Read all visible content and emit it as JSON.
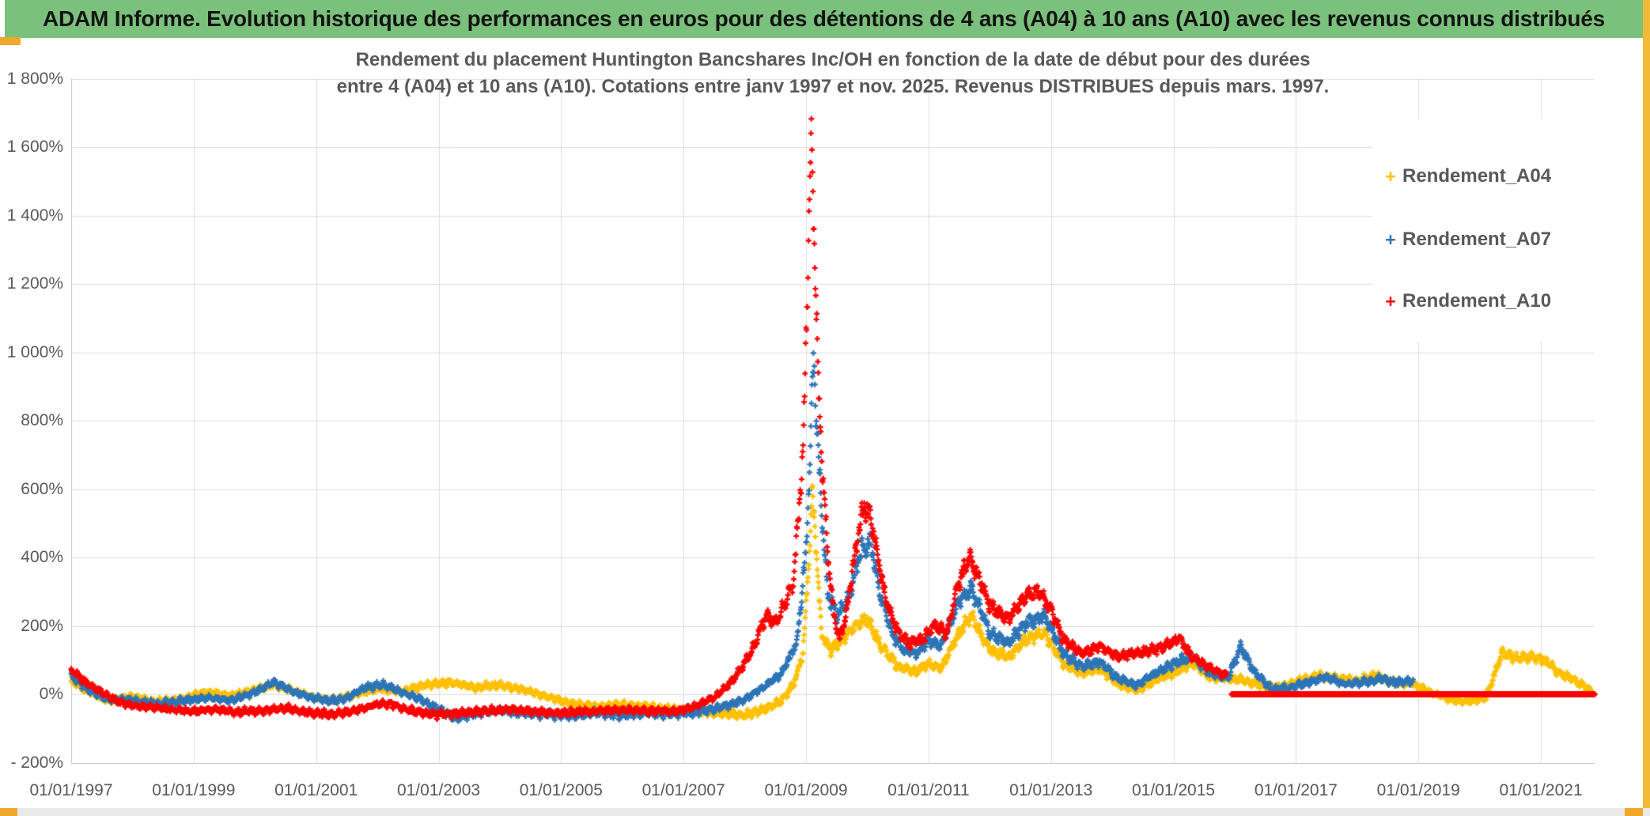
{
  "header": {
    "title": "ADAM Informe. Evolution historique des performances en euros pour des détentions de 4 ans (A04) à 10 ans (A10) avec les revenus connus distribués"
  },
  "colors": {
    "header_bg": "#7AC17B",
    "gold_accent": "#F0A72C",
    "gold_border": "#F3BB35",
    "grid": "#DCDCDC",
    "axis": "#BDBDBD",
    "text_gray": "#595959",
    "series_a04": "#FFC000",
    "series_a07": "#2E75B6",
    "series_a10": "#FF0000"
  },
  "chart": {
    "title_line1": "Rendement du placement Huntington Bancshares Inc/OH en fonction de la date de début pour des durées",
    "title_line2": "entre 4 (A04) et 10 ans (A10). Cotations entre janv 1997 et nov. 2025. Revenus DISTRIBUES depuis mars. 1997.",
    "legend": [
      {
        "label": "Rendement_A04",
        "color": "#FFC000",
        "marker": "+"
      },
      {
        "label": "Rendement_A07",
        "color": "#2E75B6",
        "marker": "+"
      },
      {
        "label": "Rendement_A10",
        "color": "#FF0000",
        "marker": "+"
      }
    ],
    "y_axis": {
      "ticks": [
        {
          "v": 1800,
          "label": "1 800%"
        },
        {
          "v": 1600,
          "label": "1 600%"
        },
        {
          "v": 1400,
          "label": "1 400%"
        },
        {
          "v": 1200,
          "label": "1 200%"
        },
        {
          "v": 1000,
          "label": "1 000%"
        },
        {
          "v": 800,
          "label": "800%"
        },
        {
          "v": 600,
          "label": "600%"
        },
        {
          "v": 400,
          "label": "400%"
        },
        {
          "v": 200,
          "label": "200%"
        },
        {
          "v": 0,
          "label": "0%"
        },
        {
          "v": -200,
          "label": "- 200%"
        }
      ]
    },
    "x_axis": {
      "ticks": [
        {
          "year": 1997,
          "label": "01/01/1997"
        },
        {
          "year": 1999,
          "label": "01/01/1999"
        },
        {
          "year": 2001,
          "label": "01/01/2001"
        },
        {
          "year": 2003,
          "label": "01/01/2003"
        },
        {
          "year": 2005,
          "label": "01/01/2005"
        },
        {
          "year": 2007,
          "label": "01/01/2007"
        },
        {
          "year": 2009,
          "label": "01/01/2009"
        },
        {
          "year": 2011,
          "label": "01/01/2011"
        },
        {
          "year": 2013,
          "label": "01/01/2013"
        },
        {
          "year": 2015,
          "label": "01/01/2015"
        },
        {
          "year": 2017,
          "label": "01/01/2017"
        },
        {
          "year": 2019,
          "label": "01/01/2019"
        },
        {
          "year": 2021,
          "label": "01/01/2021"
        }
      ]
    }
  },
  "chart_data": {
    "type": "scatter",
    "marker": "plus",
    "x_unit": "start date (decimal year)",
    "y_unit": "performance %",
    "x_range": [
      1997.0,
      2021.95
    ],
    "y_range": [
      -200,
      1800
    ],
    "grid": true,
    "legend_position": "right-overlay",
    "series": [
      {
        "name": "Rendement_A04",
        "color": "#FFC000",
        "start": 1997.0,
        "end": 2021.83,
        "step": 0.008,
        "jitter_base": 9,
        "jitter_rel": 0.05,
        "anchors": [
          [
            1997.0,
            38
          ],
          [
            1997.3,
            5
          ],
          [
            1997.6,
            -18
          ],
          [
            1998.0,
            -8
          ],
          [
            1998.4,
            -22
          ],
          [
            1998.8,
            -15
          ],
          [
            1999.2,
            8
          ],
          [
            1999.6,
            -5
          ],
          [
            2000.0,
            12
          ],
          [
            2000.3,
            30
          ],
          [
            2000.7,
            5
          ],
          [
            2001.0,
            -12
          ],
          [
            2001.3,
            -18
          ],
          [
            2001.7,
            2
          ],
          [
            2002.0,
            15
          ],
          [
            2002.4,
            8
          ],
          [
            2002.8,
            28
          ],
          [
            2003.2,
            35
          ],
          [
            2003.6,
            20
          ],
          [
            2004.0,
            28
          ],
          [
            2004.4,
            12
          ],
          [
            2004.8,
            -8
          ],
          [
            2005.2,
            -28
          ],
          [
            2005.6,
            -38
          ],
          [
            2006.0,
            -30
          ],
          [
            2006.4,
            -38
          ],
          [
            2006.8,
            -45
          ],
          [
            2007.2,
            -50
          ],
          [
            2007.6,
            -55
          ],
          [
            2008.0,
            -62
          ],
          [
            2008.3,
            -45
          ],
          [
            2008.6,
            -20
          ],
          [
            2008.8,
            30
          ],
          [
            2008.95,
            120
          ],
          [
            2009.05,
            400
          ],
          [
            2009.1,
            600
          ],
          [
            2009.15,
            480
          ],
          [
            2009.25,
            180
          ],
          [
            2009.4,
            130
          ],
          [
            2009.6,
            160
          ],
          [
            2009.8,
            200
          ],
          [
            2010.0,
            220
          ],
          [
            2010.2,
            150
          ],
          [
            2010.5,
            80
          ],
          [
            2010.8,
            65
          ],
          [
            2011.0,
            90
          ],
          [
            2011.2,
            75
          ],
          [
            2011.5,
            180
          ],
          [
            2011.7,
            230
          ],
          [
            2012.0,
            130
          ],
          [
            2012.3,
            110
          ],
          [
            2012.6,
            160
          ],
          [
            2012.9,
            180
          ],
          [
            2013.2,
            90
          ],
          [
            2013.5,
            60
          ],
          [
            2013.8,
            75
          ],
          [
            2014.1,
            30
          ],
          [
            2014.4,
            10
          ],
          [
            2014.7,
            40
          ],
          [
            2015.0,
            60
          ],
          [
            2015.3,
            95
          ],
          [
            2015.6,
            50
          ],
          [
            2015.9,
            45
          ],
          [
            2016.2,
            40
          ],
          [
            2016.5,
            20
          ],
          [
            2016.8,
            25
          ],
          [
            2017.1,
            40
          ],
          [
            2017.4,
            55
          ],
          [
            2017.7,
            45
          ],
          [
            2018.0,
            40
          ],
          [
            2018.3,
            55
          ],
          [
            2018.6,
            35
          ],
          [
            2018.9,
            30
          ],
          [
            2019.2,
            5
          ],
          [
            2019.5,
            -15
          ],
          [
            2019.8,
            -22
          ],
          [
            2020.1,
            -10
          ],
          [
            2020.25,
            60
          ],
          [
            2020.35,
            120
          ],
          [
            2020.6,
            105
          ],
          [
            2020.9,
            110
          ],
          [
            2021.1,
            95
          ],
          [
            2021.3,
            60
          ],
          [
            2021.5,
            45
          ],
          [
            2021.7,
            25
          ],
          [
            2021.83,
            8
          ]
        ]
      },
      {
        "name": "Rendement_A07",
        "color": "#2E75B6",
        "start": 1997.0,
        "end": 2018.92,
        "step": 0.008,
        "jitter_base": 9,
        "jitter_rel": 0.05,
        "anchors": [
          [
            1997.0,
            55
          ],
          [
            1997.3,
            10
          ],
          [
            1997.6,
            -15
          ],
          [
            1998.0,
            -18
          ],
          [
            1998.4,
            -28
          ],
          [
            1998.8,
            -20
          ],
          [
            1999.2,
            -10
          ],
          [
            1999.6,
            -18
          ],
          [
            2000.0,
            5
          ],
          [
            2000.3,
            35
          ],
          [
            2000.6,
            10
          ],
          [
            2000.9,
            -8
          ],
          [
            2001.2,
            -20
          ],
          [
            2001.5,
            -12
          ],
          [
            2001.8,
            20
          ],
          [
            2002.1,
            28
          ],
          [
            2002.4,
            5
          ],
          [
            2002.7,
            -15
          ],
          [
            2003.0,
            -45
          ],
          [
            2003.3,
            -70
          ],
          [
            2003.6,
            -55
          ],
          [
            2004.0,
            -48
          ],
          [
            2004.4,
            -55
          ],
          [
            2004.8,
            -60
          ],
          [
            2005.2,
            -62
          ],
          [
            2005.6,
            -55
          ],
          [
            2006.0,
            -60
          ],
          [
            2006.4,
            -55
          ],
          [
            2006.8,
            -58
          ],
          [
            2007.2,
            -52
          ],
          [
            2007.6,
            -40
          ],
          [
            2008.0,
            -15
          ],
          [
            2008.3,
            20
          ],
          [
            2008.6,
            60
          ],
          [
            2008.85,
            150
          ],
          [
            2009.0,
            420
          ],
          [
            2009.07,
            700
          ],
          [
            2009.12,
            1000
          ],
          [
            2009.17,
            800
          ],
          [
            2009.25,
            550
          ],
          [
            2009.35,
            300
          ],
          [
            2009.5,
            230
          ],
          [
            2009.7,
            280
          ],
          [
            2009.9,
            420
          ],
          [
            2010.05,
            450
          ],
          [
            2010.2,
            300
          ],
          [
            2010.4,
            180
          ],
          [
            2010.6,
            130
          ],
          [
            2010.8,
            120
          ],
          [
            2011.0,
            160
          ],
          [
            2011.2,
            140
          ],
          [
            2011.5,
            270
          ],
          [
            2011.7,
            310
          ],
          [
            2012.0,
            180
          ],
          [
            2012.3,
            150
          ],
          [
            2012.6,
            210
          ],
          [
            2012.9,
            230
          ],
          [
            2013.2,
            120
          ],
          [
            2013.5,
            80
          ],
          [
            2013.8,
            95
          ],
          [
            2014.1,
            45
          ],
          [
            2014.4,
            25
          ],
          [
            2014.7,
            60
          ],
          [
            2015.0,
            90
          ],
          [
            2015.3,
            110
          ],
          [
            2015.6,
            60
          ],
          [
            2015.9,
            50
          ],
          [
            2016.1,
            140
          ],
          [
            2016.3,
            70
          ],
          [
            2016.6,
            15
          ],
          [
            2016.9,
            20
          ],
          [
            2017.2,
            35
          ],
          [
            2017.5,
            50
          ],
          [
            2017.8,
            30
          ],
          [
            2018.1,
            35
          ],
          [
            2018.4,
            45
          ],
          [
            2018.6,
            35
          ],
          [
            2018.92,
            38
          ]
        ]
      },
      {
        "name": "Rendement_A10",
        "color": "#FF0000",
        "start": 1997.0,
        "end": 2015.87,
        "step": 0.008,
        "jitter_base": 8,
        "jitter_rel": 0.05,
        "anchors": [
          [
            1997.0,
            72
          ],
          [
            1997.2,
            40
          ],
          [
            1997.5,
            5
          ],
          [
            1997.8,
            -25
          ],
          [
            1998.1,
            -35
          ],
          [
            1998.5,
            -42
          ],
          [
            1998.9,
            -50
          ],
          [
            1999.3,
            -45
          ],
          [
            1999.7,
            -52
          ],
          [
            2000.1,
            -48
          ],
          [
            2000.5,
            -40
          ],
          [
            2000.9,
            -55
          ],
          [
            2001.3,
            -58
          ],
          [
            2001.7,
            -45
          ],
          [
            2002.0,
            -30
          ],
          [
            2002.2,
            -28
          ],
          [
            2002.5,
            -45
          ],
          [
            2002.9,
            -60
          ],
          [
            2003.3,
            -55
          ],
          [
            2003.7,
            -50
          ],
          [
            2004.1,
            -45
          ],
          [
            2004.5,
            -50
          ],
          [
            2004.9,
            -55
          ],
          [
            2005.3,
            -52
          ],
          [
            2005.7,
            -48
          ],
          [
            2006.1,
            -45
          ],
          [
            2006.5,
            -50
          ],
          [
            2006.9,
            -48
          ],
          [
            2007.2,
            -35
          ],
          [
            2007.5,
            -10
          ],
          [
            2007.8,
            40
          ],
          [
            2008.1,
            120
          ],
          [
            2008.35,
            230
          ],
          [
            2008.5,
            210
          ],
          [
            2008.65,
            260
          ],
          [
            2008.8,
            340
          ],
          [
            2008.95,
            700
          ],
          [
            2009.03,
            1250
          ],
          [
            2009.08,
            1610
          ],
          [
            2009.12,
            1430
          ],
          [
            2009.16,
            1180
          ],
          [
            2009.2,
            900
          ],
          [
            2009.27,
            650
          ],
          [
            2009.35,
            420
          ],
          [
            2009.45,
            230
          ],
          [
            2009.55,
            160
          ],
          [
            2009.65,
            230
          ],
          [
            2009.75,
            350
          ],
          [
            2009.85,
            470
          ],
          [
            2009.95,
            550
          ],
          [
            2010.05,
            520
          ],
          [
            2010.15,
            420
          ],
          [
            2010.3,
            280
          ],
          [
            2010.5,
            180
          ],
          [
            2010.7,
            150
          ],
          [
            2010.9,
            160
          ],
          [
            2011.1,
            200
          ],
          [
            2011.3,
            180
          ],
          [
            2011.5,
            330
          ],
          [
            2011.65,
            400
          ],
          [
            2011.8,
            350
          ],
          [
            2012.0,
            260
          ],
          [
            2012.3,
            220
          ],
          [
            2012.6,
            290
          ],
          [
            2012.8,
            300
          ],
          [
            2013.0,
            250
          ],
          [
            2013.2,
            160
          ],
          [
            2013.5,
            120
          ],
          [
            2013.8,
            140
          ],
          [
            2014.1,
            110
          ],
          [
            2014.4,
            120
          ],
          [
            2014.7,
            130
          ],
          [
            2015.0,
            150
          ],
          [
            2015.1,
            165
          ],
          [
            2015.3,
            110
          ],
          [
            2015.6,
            75
          ],
          [
            2015.87,
            55
          ]
        ],
        "flat_zero": {
          "from": 2015.95,
          "to": 2021.88,
          "value": 0
        }
      }
    ]
  }
}
